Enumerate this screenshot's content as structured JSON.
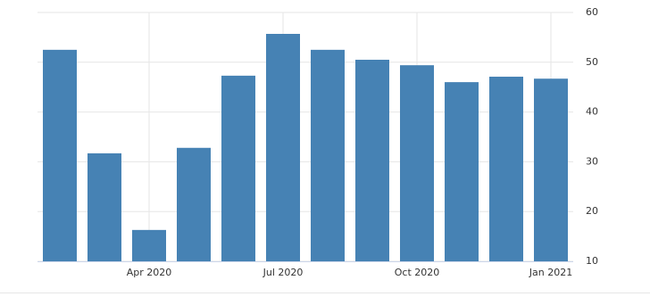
{
  "chart_data": {
    "type": "bar",
    "categories": [
      null,
      null,
      "Apr 2020",
      null,
      null,
      "Jul 2020",
      null,
      null,
      "Oct 2020",
      null,
      null,
      "Jan 2021"
    ],
    "values": [
      52.5,
      31.7,
      16.3,
      32.8,
      47.3,
      55.7,
      52.5,
      50.5,
      49.4,
      46,
      47.1,
      46.7
    ],
    "color": "#4682b4",
    "ylim": [
      10,
      60
    ],
    "yticks": [
      10,
      20,
      30,
      40,
      50,
      60
    ],
    "grid": true
  }
}
